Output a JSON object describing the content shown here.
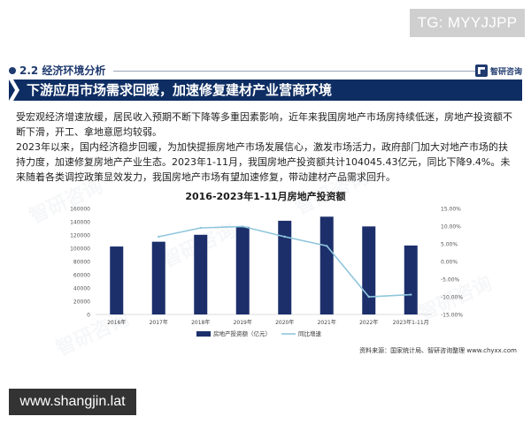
{
  "tg_badge": "TG: MYYJJPP",
  "section": {
    "title": "2.2 经济环境分析",
    "logo_text": "智研咨询"
  },
  "banner": {
    "title": "下游应用市场需求回暖，加速修复建材产业营商环境"
  },
  "paragraphs": [
    "受宏观经济增速放缓，居民收入预期不断下降等多重因素影响，近年来我国房地产市场房持续低迷，房地产投资额不断下滑，开工、拿地意愿均较弱。",
    "2023年以来，国内经济稳步回暖，为加快提振房地产市场发展信心，激发市场活力，政府部门加大对地产市场的扶持力度，加速修复房地产产业生态。2023年1-11月，我国房地产投资额共计104045.43亿元，同比下降9.4%。未来随着各类调控政策显效发力，我国房地产市场有望加速修复，带动建材产品需求回升。"
  ],
  "chart_data": {
    "type": "bar",
    "title": "2016-2023年1-11月房地产投资额",
    "categories": [
      "2016年",
      "2017年",
      "2018年",
      "2019年",
      "2020年",
      "2021年",
      "2022年",
      "2023年1-11月"
    ],
    "series": [
      {
        "name": "房地产投资额（亿元）",
        "kind": "bar",
        "axis": "left",
        "color": "#1c2f6b",
        "values": [
          102581,
          109799,
          120264,
          132194,
          141443,
          147602,
          132895,
          104045
        ]
      },
      {
        "name": "同比增速",
        "kind": "line",
        "axis": "right",
        "color": "#8fc6dc",
        "values": [
          null,
          7.0,
          9.5,
          9.9,
          7.0,
          4.4,
          -10.0,
          -9.4
        ]
      }
    ],
    "y_left": {
      "ticks": [
        "0",
        "20000",
        "40000",
        "60000",
        "80000",
        "100000",
        "120000",
        "140000",
        "160000"
      ],
      "range": [
        0,
        160000
      ]
    },
    "y_right": {
      "ticks": [
        "15.00%",
        "10.00%",
        "5.00%",
        "0.00%",
        "-5.00%",
        "-10.00%",
        "-15.00%"
      ],
      "range": [
        -15,
        15
      ]
    },
    "legend_position": "bottom",
    "grid": false
  },
  "source": "资料来源：国家统计局、智研咨询整理 www.chyxx.com",
  "watermark_text": "智研咨询",
  "site_badge": "www.shangjin.lat"
}
